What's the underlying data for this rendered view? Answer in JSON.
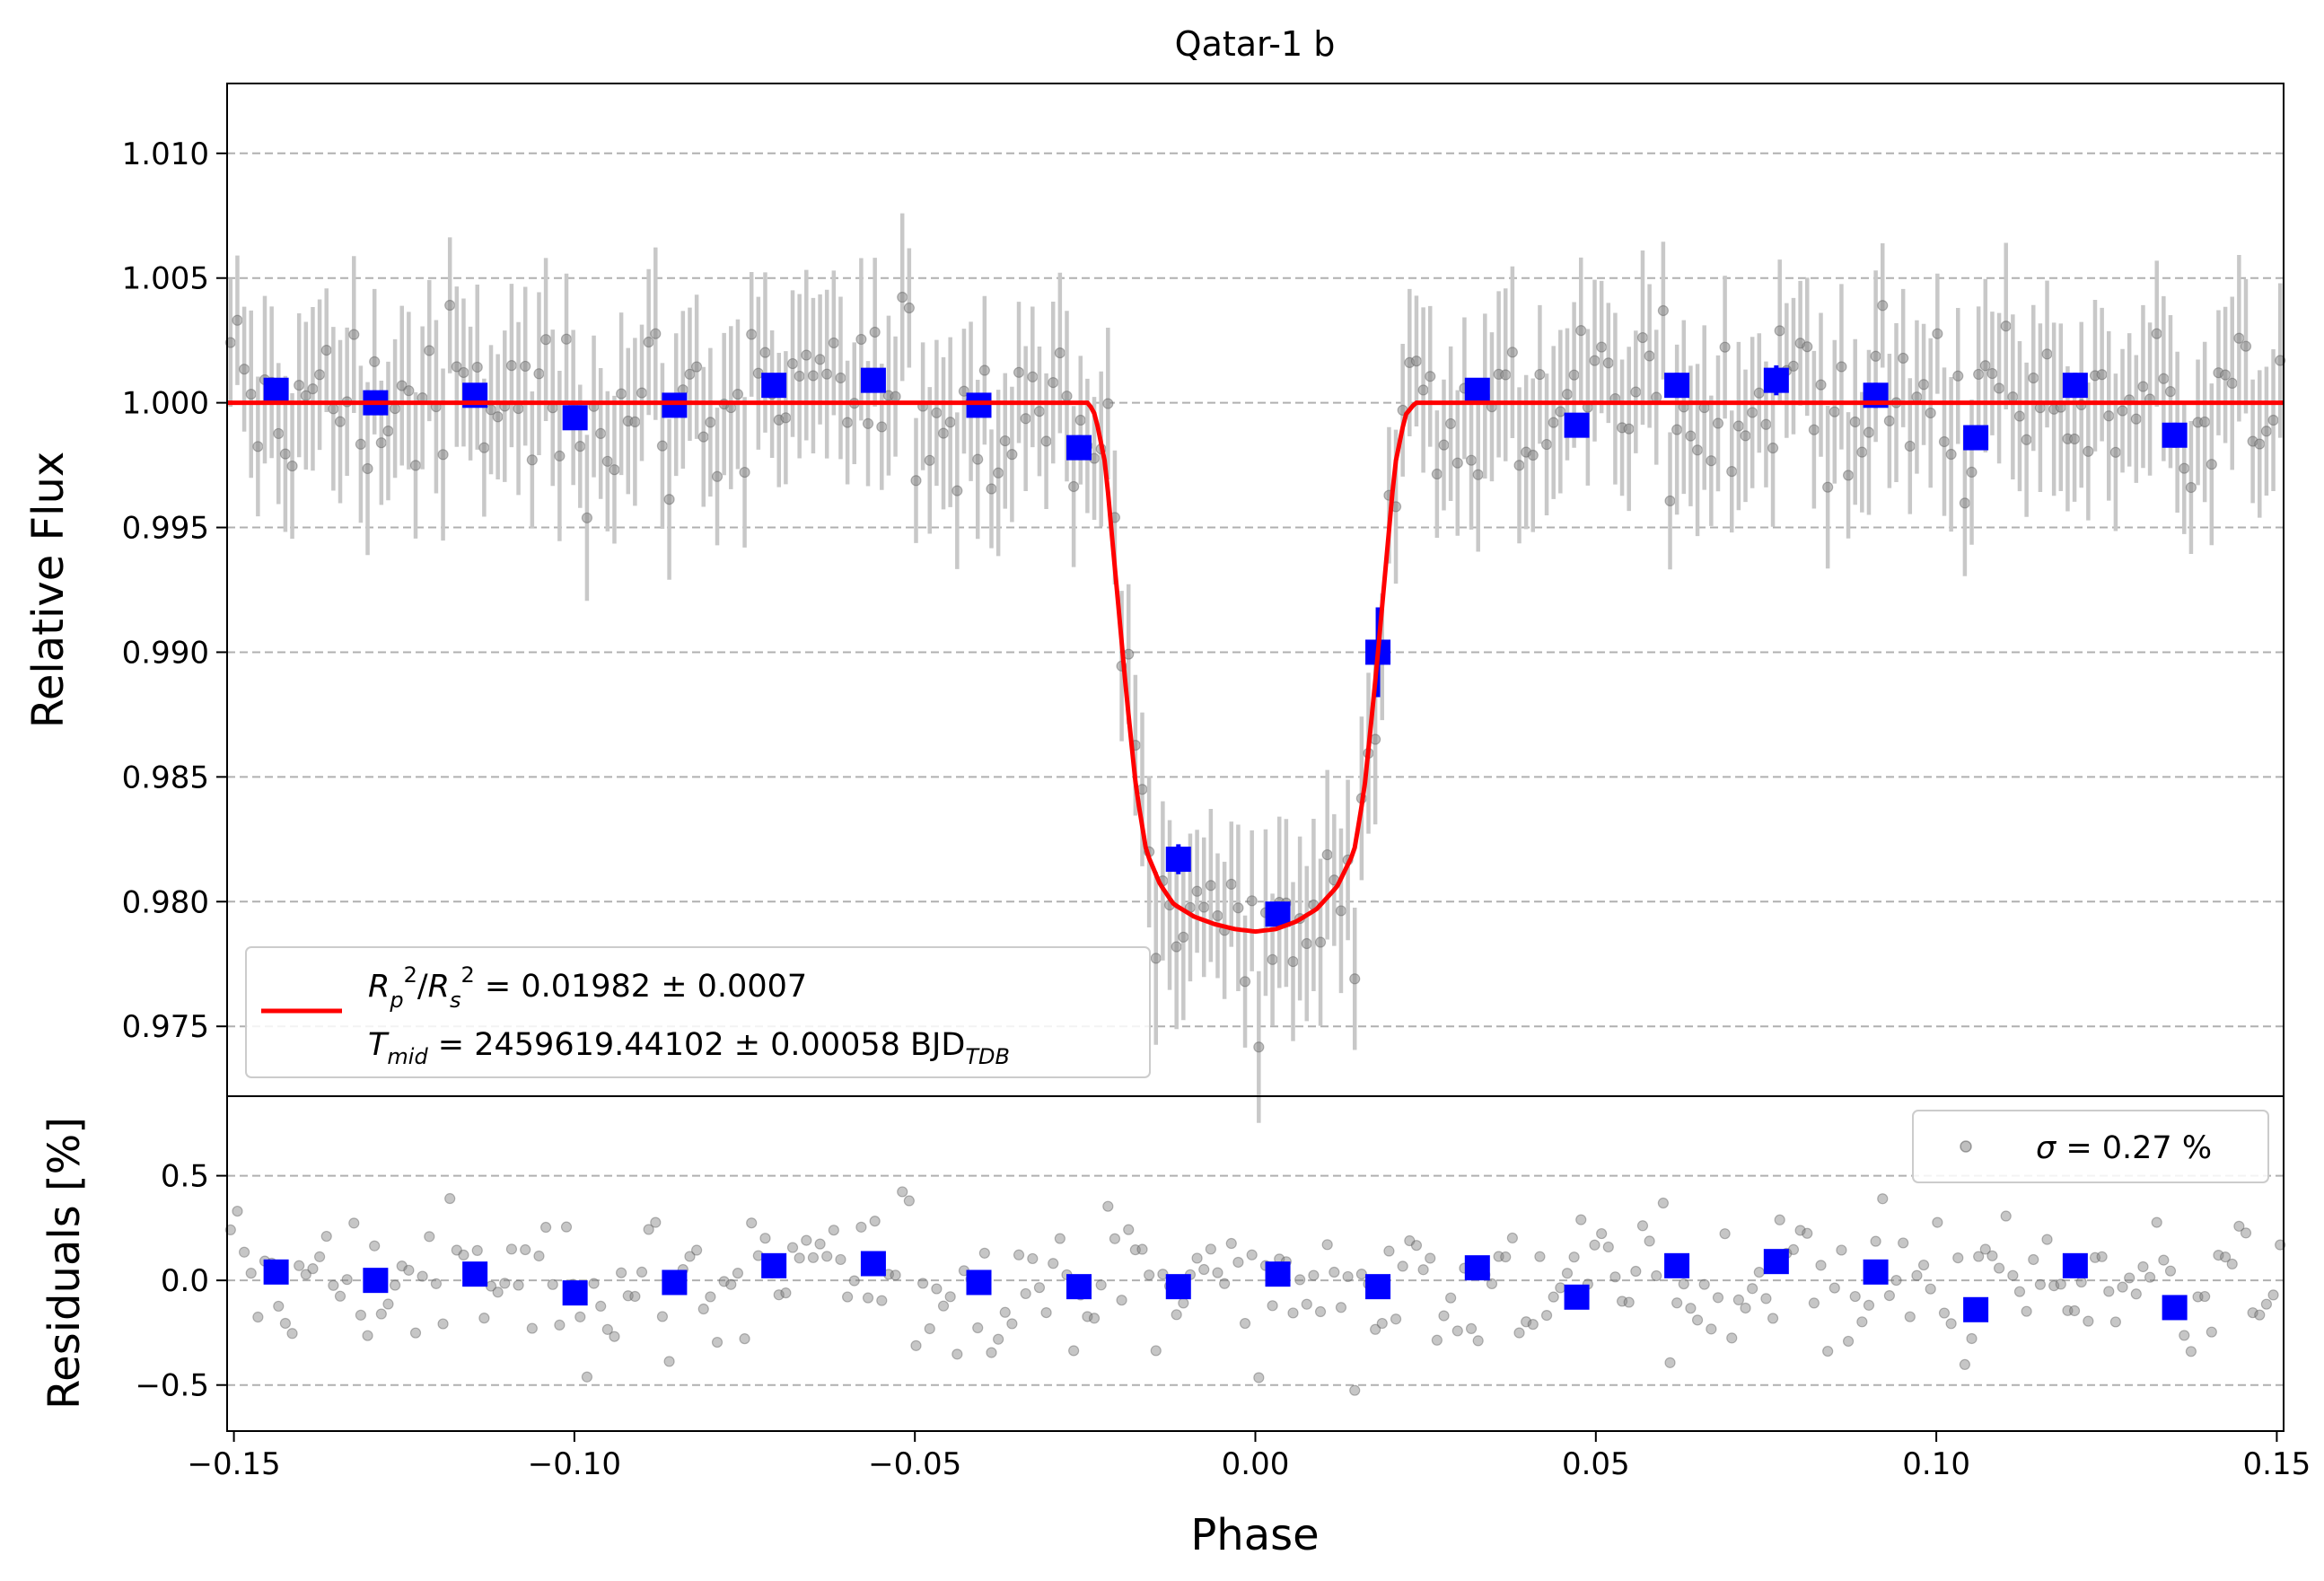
{
  "chart_data": [
    {
      "type": "scatter",
      "title": "Qatar-1 b",
      "xlabel": "",
      "ylabel": "Relative Flux",
      "xlim": [
        -0.151,
        0.151
      ],
      "ylim": [
        0.9722,
        1.0128
      ],
      "yticks": [
        "1.010",
        "1.005",
        "1.000",
        "0.995",
        "0.990",
        "0.985",
        "0.980",
        "0.975"
      ],
      "ytick_values": [
        1.01,
        1.005,
        1.0,
        0.995,
        0.99,
        0.985,
        0.98,
        0.975
      ],
      "grid": "horizontal dashed",
      "legend_position": "lower-left",
      "legend": {
        "line1_prefix": "R",
        "line1_p": "p",
        "line1_s": "s",
        "line1_sup": "2",
        "line1_value": " = 0.01982 ± 0.0007",
        "line2_prefix": "T",
        "line2_sub": "mid",
        "line2_value": " = 2459619.44102 ± 0.00058 BJD",
        "line2_tail_sub": "TDB"
      },
      "model": {
        "name": "transit model",
        "color": "#ff0000",
        "x": [
          -0.151,
          -0.0245,
          -0.0235,
          -0.022,
          -0.0205,
          -0.019,
          -0.0175,
          -0.016,
          -0.014,
          -0.012,
          -0.009,
          -0.006,
          -0.003,
          0.0,
          0.003,
          0.006,
          0.009,
          0.012,
          0.0145,
          0.016,
          0.0175,
          0.019,
          0.0205,
          0.022,
          0.0235,
          0.0245,
          0.151
        ],
        "y": [
          1.0,
          1.0,
          0.9995,
          0.9975,
          0.993,
          0.9885,
          0.9845,
          0.982,
          0.9807,
          0.9799,
          0.9794,
          0.9791,
          0.9789,
          0.9788,
          0.9789,
          0.9792,
          0.9797,
          0.9806,
          0.982,
          0.9845,
          0.9885,
          0.993,
          0.9975,
          0.9995,
          1.0,
          1.0,
          1.0
        ]
      },
      "binned": {
        "name": "binned",
        "color": "#0000ff",
        "x": [
          -0.1438,
          -0.1292,
          -0.1146,
          -0.0999,
          -0.0853,
          -0.0707,
          -0.0561,
          -0.0406,
          -0.0259,
          -0.0113,
          0.0033,
          0.018,
          0.0326,
          0.0472,
          0.0619,
          0.0765,
          0.0911,
          0.1058,
          0.1204,
          0.135
        ],
        "y": [
          1.0005,
          1.0,
          1.0003,
          0.9994,
          0.9999,
          1.0007,
          1.0009,
          0.9999,
          0.9982,
          0.9817,
          0.9795,
          0.99,
          1.0005,
          0.9991,
          1.0007,
          1.0009,
          1.0003,
          0.9986,
          1.0007,
          0.9987
        ],
        "err": [
          0.0004,
          0.0004,
          0.0004,
          0.0004,
          0.0004,
          0.0004,
          0.0004,
          0.0004,
          0.0005,
          0.0006,
          0.0005,
          0.0018,
          0.0004,
          0.0004,
          0.0005,
          0.0006,
          0.0005,
          0.0004,
          0.0005,
          0.0005
        ]
      },
      "raw": {
        "name": "unbinned data",
        "color": "#808080",
        "error_bar": 0.0028
      }
    },
    {
      "type": "scatter",
      "title": "",
      "xlabel": "Phase",
      "ylabel": "Residuals [%]",
      "xlim": [
        -0.151,
        0.151
      ],
      "ylim": [
        -0.72,
        0.88
      ],
      "yticks": [
        "0.5",
        "0.0",
        "−0.5"
      ],
      "ytick_values": [
        0.5,
        0.0,
        -0.5
      ],
      "xticks": [
        "−0.15",
        "−0.10",
        "−0.05",
        "0.00",
        "0.05",
        "0.10",
        "0.15"
      ],
      "xtick_values": [
        -0.15,
        -0.1,
        -0.05,
        0.0,
        0.05,
        0.1,
        0.15
      ],
      "grid": "horizontal dashed",
      "legend_position": "top-right",
      "legend": {
        "sigma_symbol": "σ",
        "sigma_value": " = 0.27 %"
      },
      "binned_residuals": [
        0.04,
        0.0,
        0.03,
        -0.06,
        -0.01,
        0.07,
        0.08,
        -0.01,
        -0.03,
        -0.03,
        0.03,
        -0.03,
        0.06,
        -0.08,
        0.07,
        0.09,
        0.04,
        -0.14,
        0.07,
        -0.13
      ],
      "sigma_percent": 0.27
    }
  ]
}
